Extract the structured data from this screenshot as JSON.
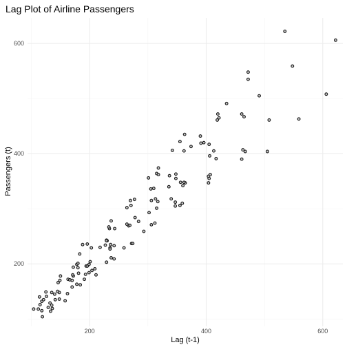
{
  "chart_data": {
    "type": "scatter",
    "title": "Lag Plot of Airline Passengers",
    "xlabel": "Lag (t-1)",
    "ylabel": "Passengers (t)",
    "xlim": [
      93.5,
      634.5
    ],
    "ylim": [
      86.6,
      646.4
    ],
    "x_ticks": [
      200,
      400,
      600
    ],
    "y_ticks": [
      200,
      400,
      600
    ],
    "x_minor": [
      100,
      300,
      500
    ],
    "y_minor": [
      100,
      300,
      500
    ],
    "grid": true,
    "points": [
      [
        112,
        118
      ],
      [
        118,
        132
      ],
      [
        132,
        129
      ],
      [
        129,
        121
      ],
      [
        121,
        135
      ],
      [
        135,
        148
      ],
      [
        148,
        148
      ],
      [
        148,
        136
      ],
      [
        136,
        119
      ],
      [
        119,
        104
      ],
      [
        104,
        118
      ],
      [
        118,
        115
      ],
      [
        115,
        126
      ],
      [
        126,
        141
      ],
      [
        141,
        135
      ],
      [
        135,
        125
      ],
      [
        125,
        149
      ],
      [
        149,
        170
      ],
      [
        170,
        170
      ],
      [
        170,
        158
      ],
      [
        158,
        133
      ],
      [
        133,
        114
      ],
      [
        114,
        140
      ],
      [
        140,
        145
      ],
      [
        145,
        150
      ],
      [
        150,
        178
      ],
      [
        178,
        163
      ],
      [
        163,
        172
      ],
      [
        172,
        178
      ],
      [
        178,
        199
      ],
      [
        199,
        199
      ],
      [
        199,
        184
      ],
      [
        184,
        162
      ],
      [
        162,
        146
      ],
      [
        146,
        166
      ],
      [
        166,
        171
      ],
      [
        171,
        180
      ],
      [
        180,
        193
      ],
      [
        193,
        181
      ],
      [
        181,
        183
      ],
      [
        183,
        218
      ],
      [
        218,
        230
      ],
      [
        230,
        242
      ],
      [
        242,
        209
      ],
      [
        209,
        191
      ],
      [
        191,
        172
      ],
      [
        172,
        194
      ],
      [
        194,
        196
      ],
      [
        196,
        196
      ],
      [
        196,
        236
      ],
      [
        236,
        235
      ],
      [
        235,
        229
      ],
      [
        229,
        243
      ],
      [
        243,
        264
      ],
      [
        264,
        272
      ],
      [
        272,
        237
      ],
      [
        237,
        211
      ],
      [
        211,
        180
      ],
      [
        180,
        201
      ],
      [
        201,
        204
      ],
      [
        204,
        188
      ],
      [
        188,
        235
      ],
      [
        235,
        227
      ],
      [
        227,
        234
      ],
      [
        234,
        264
      ],
      [
        264,
        302
      ],
      [
        302,
        293
      ],
      [
        293,
        259
      ],
      [
        259,
        229
      ],
      [
        229,
        203
      ],
      [
        203,
        229
      ],
      [
        229,
        242
      ],
      [
        242,
        233
      ],
      [
        233,
        267
      ],
      [
        267,
        269
      ],
      [
        269,
        270
      ],
      [
        270,
        315
      ],
      [
        315,
        364
      ],
      [
        364,
        347
      ],
      [
        347,
        312
      ],
      [
        312,
        274
      ],
      [
        274,
        237
      ],
      [
        237,
        278
      ],
      [
        278,
        284
      ],
      [
        284,
        277
      ],
      [
        277,
        317
      ],
      [
        317,
        313
      ],
      [
        313,
        318
      ],
      [
        318,
        374
      ],
      [
        374,
        413
      ],
      [
        413,
        405
      ],
      [
        405,
        355
      ],
      [
        355,
        306
      ],
      [
        306,
        271
      ],
      [
        271,
        306
      ],
      [
        306,
        315
      ],
      [
        315,
        301
      ],
      [
        301,
        356
      ],
      [
        356,
        348
      ],
      [
        348,
        355
      ],
      [
        355,
        422
      ],
      [
        422,
        465
      ],
      [
        465,
        467
      ],
      [
        467,
        404
      ],
      [
        404,
        347
      ],
      [
        347,
        305
      ],
      [
        305,
        336
      ],
      [
        336,
        340
      ],
      [
        340,
        318
      ],
      [
        318,
        362
      ],
      [
        362,
        348
      ],
      [
        348,
        363
      ],
      [
        363,
        435
      ],
      [
        435,
        491
      ],
      [
        491,
        505
      ],
      [
        505,
        404
      ],
      [
        404,
        359
      ],
      [
        359,
        310
      ],
      [
        310,
        337
      ],
      [
        337,
        360
      ],
      [
        360,
        342
      ],
      [
        342,
        406
      ],
      [
        406,
        396
      ],
      [
        396,
        420
      ],
      [
        420,
        472
      ],
      [
        472,
        548
      ],
      [
        548,
        559
      ],
      [
        559,
        463
      ],
      [
        463,
        407
      ],
      [
        407,
        362
      ],
      [
        362,
        405
      ],
      [
        405,
        417
      ],
      [
        417,
        391
      ],
      [
        391,
        419
      ],
      [
        419,
        461
      ],
      [
        461,
        472
      ],
      [
        472,
        535
      ],
      [
        535,
        622
      ],
      [
        622,
        606
      ],
      [
        606,
        508
      ],
      [
        508,
        461
      ],
      [
        461,
        390
      ],
      [
        390,
        432
      ]
    ]
  }
}
